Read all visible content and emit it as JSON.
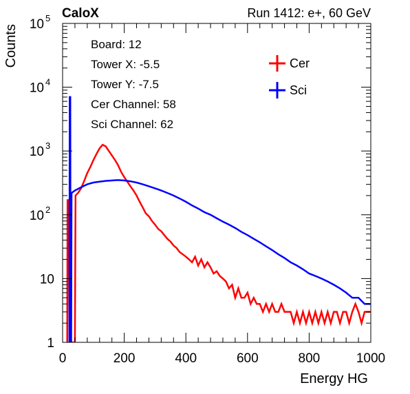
{
  "header": {
    "left_label": "CaloX",
    "right_label": "Run 1412: e+, 60 GeV"
  },
  "info_box": {
    "lines": [
      "Board: 12",
      "Tower X: -5.5",
      "Tower Y: -7.5",
      "Cer Channel: 58",
      "Sci Channel: 62"
    ]
  },
  "colors": {
    "cer": "#ff0000",
    "sci": "#0000ff",
    "axis": "#000000"
  },
  "chart_data": {
    "type": "line",
    "subtype": "step-histogram",
    "xlabel": "Energy HG",
    "ylabel": "Counts",
    "xlim": [
      0,
      1000
    ],
    "ylim": [
      1,
      100000
    ],
    "yscale": "log",
    "grid": false,
    "legend_position": "top-right",
    "x_ticks": [
      "0",
      "200",
      "400",
      "600",
      "800",
      "1000"
    ],
    "y_ticks": [
      {
        "value": 1,
        "base": "1",
        "exp": ""
      },
      {
        "value": 10,
        "base": "10",
        "exp": ""
      },
      {
        "value": 100,
        "base": "10",
        "exp": "2"
      },
      {
        "value": 1000,
        "base": "10",
        "exp": "3"
      },
      {
        "value": 10000,
        "base": "10",
        "exp": "4"
      },
      {
        "value": 100000,
        "base": "10",
        "exp": "5"
      }
    ],
    "series": [
      {
        "name": "Cer",
        "color": "#ff0000",
        "points": [
          [
            15,
            1
          ],
          [
            16,
            170
          ],
          [
            20,
            170
          ],
          [
            22,
            1
          ],
          [
            40,
            1
          ],
          [
            42,
            200
          ],
          [
            50,
            220
          ],
          [
            60,
            260
          ],
          [
            70,
            340
          ],
          [
            80,
            450
          ],
          [
            90,
            560
          ],
          [
            100,
            720
          ],
          [
            110,
            900
          ],
          [
            120,
            1100
          ],
          [
            130,
            1250
          ],
          [
            140,
            1180
          ],
          [
            150,
            1000
          ],
          [
            160,
            850
          ],
          [
            170,
            720
          ],
          [
            180,
            600
          ],
          [
            190,
            470
          ],
          [
            200,
            390
          ],
          [
            210,
            330
          ],
          [
            220,
            280
          ],
          [
            230,
            240
          ],
          [
            240,
            200
          ],
          [
            250,
            160
          ],
          [
            260,
            130
          ],
          [
            270,
            105
          ],
          [
            280,
            95
          ],
          [
            290,
            80
          ],
          [
            300,
            70
          ],
          [
            310,
            60
          ],
          [
            320,
            55
          ],
          [
            330,
            48
          ],
          [
            340,
            42
          ],
          [
            350,
            38
          ],
          [
            360,
            33
          ],
          [
            370,
            30
          ],
          [
            380,
            26
          ],
          [
            390,
            24
          ],
          [
            400,
            22
          ],
          [
            410,
            20
          ],
          [
            420,
            18
          ],
          [
            430,
            22
          ],
          [
            440,
            16
          ],
          [
            450,
            20
          ],
          [
            460,
            15
          ],
          [
            470,
            18
          ],
          [
            480,
            15
          ],
          [
            490,
            12
          ],
          [
            500,
            13
          ],
          [
            510,
            11
          ],
          [
            520,
            10
          ],
          [
            530,
            9
          ],
          [
            540,
            7
          ],
          [
            550,
            8
          ],
          [
            560,
            5
          ],
          [
            570,
            7
          ],
          [
            580,
            5
          ],
          [
            590,
            5
          ],
          [
            600,
            6
          ],
          [
            610,
            4
          ],
          [
            620,
            5
          ],
          [
            630,
            4
          ],
          [
            640,
            4
          ],
          [
            650,
            3
          ],
          [
            660,
            4
          ],
          [
            670,
            3
          ],
          [
            680,
            4
          ],
          [
            690,
            3
          ],
          [
            700,
            3
          ],
          [
            710,
            4
          ],
          [
            720,
            3
          ],
          [
            730,
            3
          ],
          [
            740,
            3
          ],
          [
            750,
            2
          ],
          [
            760,
            3
          ],
          [
            770,
            2
          ],
          [
            780,
            3
          ],
          [
            790,
            2
          ],
          [
            800,
            3
          ],
          [
            810,
            2
          ],
          [
            820,
            3
          ],
          [
            830,
            2
          ],
          [
            840,
            3
          ],
          [
            850,
            2
          ],
          [
            860,
            3
          ],
          [
            870,
            2
          ],
          [
            880,
            3
          ],
          [
            890,
            3
          ],
          [
            900,
            2
          ],
          [
            910,
            3
          ],
          [
            920,
            3
          ],
          [
            930,
            2
          ],
          [
            940,
            3
          ],
          [
            950,
            4
          ],
          [
            960,
            3
          ],
          [
            970,
            2
          ],
          [
            980,
            3
          ],
          [
            990,
            3
          ],
          [
            1000,
            3
          ]
        ]
      },
      {
        "name": "Sci",
        "color": "#0000ff",
        "points": [
          [
            22,
            1
          ],
          [
            23,
            7000
          ],
          [
            25,
            7000
          ],
          [
            26,
            1
          ],
          [
            28,
            1
          ],
          [
            29,
            220
          ],
          [
            40,
            240
          ],
          [
            60,
            270
          ],
          [
            80,
            300
          ],
          [
            100,
            320
          ],
          [
            120,
            330
          ],
          [
            140,
            340
          ],
          [
            160,
            345
          ],
          [
            180,
            350
          ],
          [
            200,
            345
          ],
          [
            220,
            335
          ],
          [
            240,
            320
          ],
          [
            260,
            300
          ],
          [
            280,
            280
          ],
          [
            300,
            260
          ],
          [
            320,
            240
          ],
          [
            340,
            220
          ],
          [
            360,
            200
          ],
          [
            380,
            180
          ],
          [
            400,
            160
          ],
          [
            420,
            140
          ],
          [
            440,
            125
          ],
          [
            460,
            110
          ],
          [
            480,
            100
          ],
          [
            500,
            88
          ],
          [
            520,
            78
          ],
          [
            540,
            70
          ],
          [
            560,
            62
          ],
          [
            580,
            54
          ],
          [
            600,
            48
          ],
          [
            620,
            42
          ],
          [
            640,
            37
          ],
          [
            660,
            32
          ],
          [
            680,
            28
          ],
          [
            700,
            24
          ],
          [
            720,
            21
          ],
          [
            740,
            18
          ],
          [
            760,
            16
          ],
          [
            780,
            14
          ],
          [
            800,
            12
          ],
          [
            820,
            11
          ],
          [
            840,
            10
          ],
          [
            860,
            9
          ],
          [
            880,
            8
          ],
          [
            900,
            7
          ],
          [
            920,
            6
          ],
          [
            940,
            5
          ],
          [
            960,
            5
          ],
          [
            980,
            4
          ],
          [
            1000,
            4
          ]
        ]
      }
    ]
  }
}
